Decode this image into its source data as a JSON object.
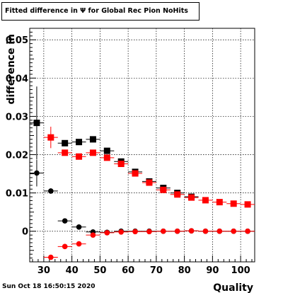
{
  "title": "Fitted difference in  Ψ  for Global Rec Pion NoHits",
  "footer": "Sun Oct 18 16:50:15 2020",
  "chart_data": {
    "type": "scatter",
    "xlabel": "Quality",
    "ylabel": "difference in",
    "xlim": [
      25,
      105
    ],
    "ylim": [
      -0.008,
      0.053
    ],
    "grid": true,
    "x_ticks": [
      30,
      40,
      50,
      60,
      70,
      80,
      90,
      100
    ],
    "y_ticks": [
      0,
      0.01,
      0.02,
      0.03,
      0.04,
      0.05
    ],
    "x_tick_labels": [
      "30",
      "40",
      "50",
      "60",
      "70",
      "80",
      "90",
      "100"
    ],
    "y_tick_labels": [
      "0",
      "0.01",
      "0.02",
      "0.03",
      "0.04",
      "0.05"
    ],
    "series": [
      {
        "marker": "circle",
        "color": "#000000",
        "x": [
          27.5,
          32.5,
          37.5,
          42.5,
          47.5,
          52.5,
          57.5,
          62.5,
          67.5,
          72.5,
          77.5,
          82.5,
          87.5,
          92.5,
          97.5,
          102.5
        ],
        "y": [
          0.0152,
          0.0105,
          0.0027,
          0.0011,
          -0.0002,
          -0.0003,
          0.0,
          0.0,
          0.0,
          0.0,
          0.0,
          0.0001,
          0.0,
          0.0,
          0.0,
          0.0
        ],
        "yerr": [
          0.0035,
          0.0007,
          0.0003,
          0.0002,
          0.0002,
          0.0001,
          0.0001,
          0.0001,
          0.0001,
          0.0001,
          0.0001,
          0.0001,
          0.0001,
          0.0001,
          0.0001,
          0.0001
        ]
      },
      {
        "marker": "square",
        "color": "#000000",
        "x": [
          27.5,
          37.5,
          42.5,
          47.5,
          52.5,
          57.5,
          62.5,
          67.5,
          72.5,
          77.5,
          82.5
        ],
        "y": [
          0.0283,
          0.023,
          0.0233,
          0.024,
          0.021,
          0.0182,
          0.0155,
          0.013,
          0.0113,
          0.01,
          0.009
        ],
        "yerr": [
          0.0095,
          0.0006,
          0.0004,
          0.0004,
          0.0003,
          0.0003,
          0.0002,
          0.0002,
          0.0002,
          0.0002,
          0.0002
        ]
      },
      {
        "marker": "circle",
        "color": "#ff0000",
        "x": [
          32.5,
          37.5,
          42.5,
          47.5,
          52.5,
          57.5,
          62.5,
          67.5,
          72.5,
          77.5,
          82.5,
          87.5,
          92.5,
          97.5,
          102.5
        ],
        "y": [
          -0.0068,
          -0.004,
          -0.0033,
          -0.001,
          -0.0004,
          -0.0002,
          -0.0001,
          -0.0001,
          0.0,
          0.0,
          0.0001,
          0.0,
          0.0,
          0.0,
          0.0
        ],
        "yerr": [
          0.0004,
          0.0003,
          0.0002,
          0.0002,
          0.0001,
          0.0001,
          0.0001,
          0.0001,
          0.0001,
          0.0001,
          0.0001,
          0.0001,
          0.0001,
          0.0001,
          0.0001
        ]
      },
      {
        "marker": "square",
        "color": "#ff0000",
        "x": [
          32.5,
          37.5,
          42.5,
          47.5,
          52.5,
          57.5,
          62.5,
          67.5,
          72.5,
          77.5,
          82.5,
          87.5,
          92.5,
          97.5,
          102.5
        ],
        "y": [
          0.0245,
          0.0205,
          0.0195,
          0.0205,
          0.0192,
          0.0176,
          0.0151,
          0.0127,
          0.0108,
          0.0096,
          0.0088,
          0.0081,
          0.0076,
          0.0072,
          0.007
        ],
        "yerr": [
          0.0028,
          0.0005,
          0.0004,
          0.0003,
          0.0003,
          0.0003,
          0.0002,
          0.0002,
          0.0002,
          0.0002,
          0.0002,
          0.0002,
          0.0002,
          0.0002,
          0.0002
        ]
      }
    ]
  }
}
